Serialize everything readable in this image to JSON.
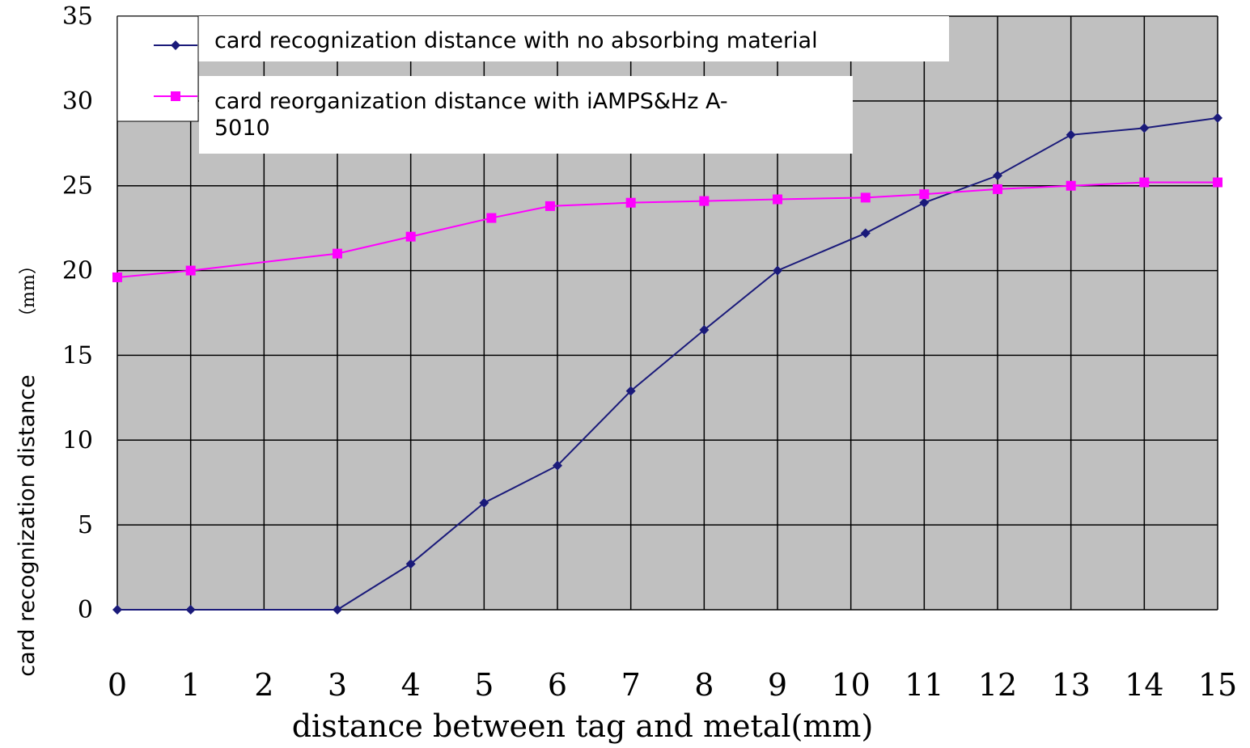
{
  "chart_data": {
    "type": "line",
    "xlabel": "distance between tag and metal(mm)",
    "ylabel": "card recognization distance",
    "ylabel_unit": "（mm）",
    "x_ticks": [
      "0",
      "1",
      "2",
      "3",
      "4",
      "5",
      "6",
      "7",
      "8",
      "9",
      "10",
      "11",
      "12",
      "13",
      "14",
      "15"
    ],
    "y_ticks": [
      "0",
      "5",
      "10",
      "15",
      "20",
      "25",
      "30",
      "35"
    ],
    "xlim": [
      0,
      15
    ],
    "ylim": [
      0,
      35
    ],
    "grid": true,
    "legend_position": "top-left",
    "series": [
      {
        "name": "card recognization distance with no absorbing material",
        "color": "#1a1a7a",
        "marker": "diamond",
        "x": [
          0,
          1,
          3,
          4,
          5,
          6,
          7,
          8,
          9,
          10.2,
          11,
          12,
          13,
          14,
          15
        ],
        "y": [
          0,
          0,
          0,
          2.7,
          6.3,
          8.5,
          12.9,
          16.5,
          20.0,
          22.2,
          24.0,
          25.6,
          28.0,
          28.4,
          29.0
        ]
      },
      {
        "name": "card reorganization distance with iAMPS&Hz A-5010",
        "color": "#ff00ff",
        "marker": "square",
        "x": [
          0,
          1,
          3,
          4,
          5.1,
          5.9,
          7,
          8,
          9,
          10.2,
          11,
          12,
          13,
          14,
          15
        ],
        "y": [
          19.6,
          20.0,
          21.0,
          22.0,
          23.1,
          23.8,
          24.0,
          24.1,
          24.2,
          24.3,
          24.5,
          24.8,
          25.0,
          25.2,
          25.2
        ]
      }
    ]
  }
}
